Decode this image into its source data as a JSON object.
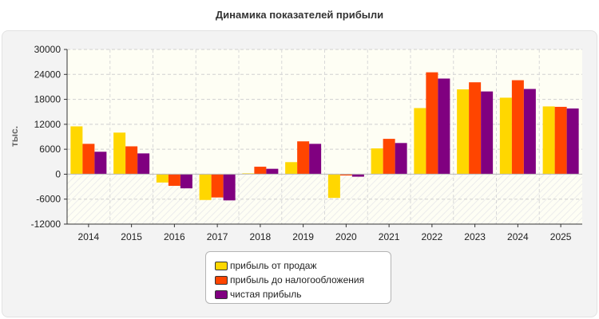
{
  "chart_data": {
    "type": "bar",
    "title": "Динамика показателей прибыли",
    "ylabel": "тыс.",
    "xlabel": "",
    "ylim": [
      -12000,
      30000
    ],
    "yticks": [
      30000,
      24000,
      18000,
      12000,
      6000,
      0,
      -6000,
      -12000
    ],
    "grid": true,
    "legend_position": "bottom",
    "categories": [
      "2014",
      "2015",
      "2016",
      "2017",
      "2018",
      "2019",
      "2020",
      "2021",
      "2022",
      "2023",
      "2024",
      "2025"
    ],
    "series": [
      {
        "name": "прибыль от продаж",
        "color": "#ffd700",
        "values": [
          11500,
          10000,
          -2000,
          -6200,
          200,
          2900,
          -5700,
          6200,
          15900,
          20400,
          18400,
          16300
        ]
      },
      {
        "name": "прибыль до налогообложения",
        "color": "#ff4500",
        "values": [
          7300,
          6700,
          -2800,
          -5600,
          1800,
          7900,
          -300,
          8500,
          24500,
          22100,
          22600,
          16200
        ]
      },
      {
        "name": "чистая прибыль",
        "color": "#800080",
        "values": [
          5400,
          5000,
          -3400,
          -6300,
          1300,
          7300,
          -600,
          7500,
          23000,
          19900,
          20500,
          15800
        ]
      }
    ]
  }
}
